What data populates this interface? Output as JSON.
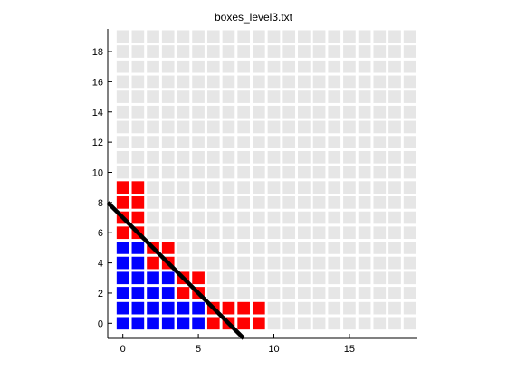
{
  "chart_data": {
    "type": "heatmap",
    "title": "boxes_level3.txt",
    "xlabel": "",
    "ylabel": "",
    "xlim": [
      -1,
      19.5
    ],
    "ylim": [
      -1,
      19.5
    ],
    "x_ticks": [
      "0",
      "5",
      "10",
      "15"
    ],
    "y_ticks": [
      "0",
      "2",
      "4",
      "6",
      "8",
      "10",
      "12",
      "14",
      "16",
      "18"
    ],
    "grid": {
      "columns": 20,
      "rows": 20
    },
    "colors": {
      "empty": "#e6e6e6",
      "red": "#ff0000",
      "blue": "#0000ff",
      "line": "#000000",
      "cell_gap": "#ffffff"
    },
    "red_cells": [
      [
        0,
        6
      ],
      [
        0,
        7
      ],
      [
        0,
        8
      ],
      [
        0,
        9
      ],
      [
        1,
        6
      ],
      [
        1,
        7
      ],
      [
        1,
        8
      ],
      [
        1,
        9
      ],
      [
        2,
        4
      ],
      [
        2,
        5
      ],
      [
        3,
        4
      ],
      [
        3,
        5
      ],
      [
        4,
        2
      ],
      [
        4,
        3
      ],
      [
        5,
        2
      ],
      [
        5,
        3
      ],
      [
        6,
        0
      ],
      [
        6,
        1
      ],
      [
        7,
        0
      ],
      [
        7,
        1
      ],
      [
        8,
        0
      ],
      [
        8,
        1
      ],
      [
        9,
        0
      ],
      [
        9,
        1
      ]
    ],
    "blue_cells": [
      [
        0,
        0
      ],
      [
        0,
        1
      ],
      [
        0,
        2
      ],
      [
        0,
        3
      ],
      [
        0,
        4
      ],
      [
        0,
        5
      ],
      [
        1,
        0
      ],
      [
        1,
        1
      ],
      [
        1,
        2
      ],
      [
        1,
        3
      ],
      [
        1,
        4
      ],
      [
        1,
        5
      ],
      [
        2,
        0
      ],
      [
        2,
        1
      ],
      [
        2,
        2
      ],
      [
        2,
        3
      ],
      [
        3,
        0
      ],
      [
        3,
        1
      ],
      [
        3,
        2
      ],
      [
        3,
        3
      ],
      [
        4,
        0
      ],
      [
        4,
        1
      ],
      [
        5,
        0
      ],
      [
        5,
        1
      ]
    ],
    "line": {
      "from": [
        -1,
        8
      ],
      "to": [
        8,
        -1
      ]
    }
  }
}
